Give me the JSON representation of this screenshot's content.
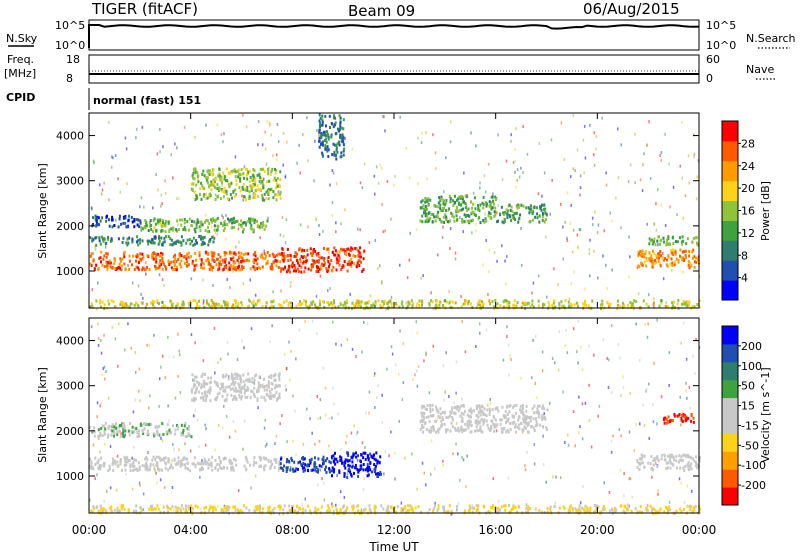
{
  "header": {
    "title": "TIGER (fitACF)",
    "beam": "Beam 09",
    "date": "06/Aug/2015"
  },
  "panels": {
    "nsky": {
      "label": "N.Sky",
      "right_label": "N.Search",
      "ticks": [
        "10^5",
        "10^0"
      ],
      "right_ticks": [
        "10^5",
        "10^0"
      ]
    },
    "freq": {
      "label_line1": "Freq.",
      "label_line2": "[MHz]",
      "right_label": "Nave",
      "ticks": [
        "18",
        "8"
      ],
      "right_ticks": [
        "60",
        "0"
      ]
    },
    "cpid": {
      "label": "CPID",
      "text": "normal (fast) 151"
    }
  },
  "colors": {
    "power_scale": [
      "#0000ff",
      "#1f4fb0",
      "#2e7d6e",
      "#3ea33c",
      "#8fc43a",
      "#ffd21a",
      "#ff9a00",
      "#ff5a00",
      "#ff0000"
    ],
    "velocity_scale": [
      "#ff0000",
      "#ff5a00",
      "#ffa000",
      "#ffd21a",
      "#c8c8c8",
      "#c8c8c8",
      "#3ea33c",
      "#2e7d6e",
      "#1f4fb0",
      "#0000ff"
    ]
  },
  "chart_data": [
    {
      "type": "heatmap",
      "name": "power",
      "xlabel": "",
      "ylabel": "Slant Range [km]",
      "xlim": [
        0,
        24
      ],
      "ylim": [
        180,
        4500
      ],
      "yticks": [
        1000,
        2000,
        3000,
        4000
      ],
      "colorbar": {
        "label": "Power [dB]",
        "ticks": [
          4,
          8,
          12,
          16,
          20,
          24,
          28
        ],
        "range": [
          0,
          32
        ]
      },
      "regions": [
        {
          "t0": 0.0,
          "t1": 2.0,
          "r0": 2000,
          "r1": 2250,
          "value": 5
        },
        {
          "t0": 0.0,
          "t1": 5.0,
          "r0": 1600,
          "r1": 1800,
          "value": 10
        },
        {
          "t0": 0.0,
          "t1": 7.5,
          "r0": 1050,
          "r1": 1450,
          "value": 26
        },
        {
          "t0": 2.0,
          "t1": 7.0,
          "r0": 1900,
          "r1": 2200,
          "value": 14
        },
        {
          "t0": 4.0,
          "t1": 7.5,
          "r0": 2600,
          "r1": 3300,
          "value": 16
        },
        {
          "t0": 7.5,
          "t1": 10.8,
          "r0": 1000,
          "r1": 1550,
          "value": 28
        },
        {
          "t0": 9.0,
          "t1": 10.0,
          "r0": 3500,
          "r1": 4500,
          "value": 8
        },
        {
          "t0": 13.0,
          "t1": 16.0,
          "r0": 2100,
          "r1": 2700,
          "value": 13
        },
        {
          "t0": 16.0,
          "t1": 18.0,
          "r0": 2100,
          "r1": 2500,
          "value": 12
        },
        {
          "t0": 21.5,
          "t1": 24.0,
          "r0": 1100,
          "r1": 1500,
          "value": 24
        },
        {
          "t0": 22.0,
          "t1": 24.0,
          "r0": 1600,
          "r1": 1800,
          "value": 14
        },
        {
          "t0": 0.0,
          "t1": 24.0,
          "r0": 200,
          "r1": 380,
          "value": 18
        }
      ]
    },
    {
      "type": "heatmap",
      "name": "velocity",
      "xlabel": "Time UT",
      "ylabel": "Slant Range [km]",
      "xlim": [
        0,
        24
      ],
      "ylim": [
        180,
        4500
      ],
      "xticks": [
        "00:00",
        "04:00",
        "08:00",
        "12:00",
        "16:00",
        "20:00",
        "00:00"
      ],
      "yticks": [
        1000,
        2000,
        3000,
        4000
      ],
      "colorbar": {
        "label": "Velocity [m s^-1]",
        "ticks": [
          200,
          100,
          50,
          15,
          -15,
          -50,
          -100,
          -200
        ],
        "range": [
          -250,
          250
        ]
      },
      "regions": [
        {
          "t0": 0.0,
          "t1": 7.5,
          "r0": 1150,
          "r1": 1450,
          "value": 0
        },
        {
          "t0": 0.0,
          "t1": 4.0,
          "r0": 1900,
          "r1": 2200,
          "value": 40
        },
        {
          "t0": 7.5,
          "t1": 9.5,
          "r0": 1100,
          "r1": 1450,
          "value": 180
        },
        {
          "t0": 9.5,
          "t1": 11.5,
          "r0": 1000,
          "r1": 1550,
          "value": 220
        },
        {
          "t0": 4.0,
          "t1": 7.5,
          "r0": 2700,
          "r1": 3300,
          "value": 0
        },
        {
          "t0": 13.0,
          "t1": 18.0,
          "r0": 2000,
          "r1": 2600,
          "value": 0
        },
        {
          "t0": 21.5,
          "t1": 24.0,
          "r0": 1150,
          "r1": 1500,
          "value": 0
        },
        {
          "t0": 22.5,
          "t1": 23.8,
          "r0": 2200,
          "r1": 2400,
          "value": -200
        },
        {
          "t0": 0.0,
          "t1": 24.0,
          "r0": 200,
          "r1": 380,
          "value": -60
        }
      ]
    }
  ]
}
